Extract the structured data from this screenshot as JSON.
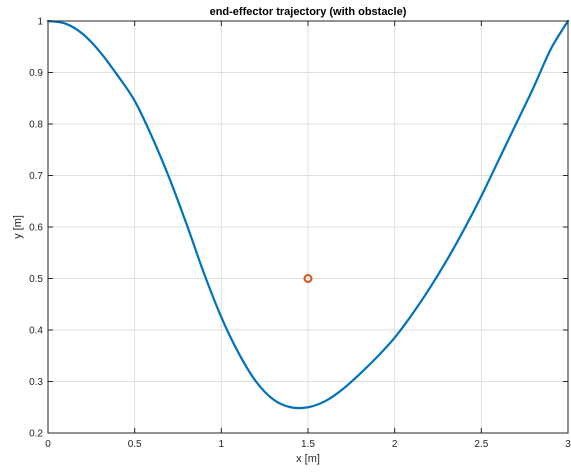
{
  "chart_data": {
    "type": "line",
    "title": "end-effector trajectory (with obstacle)",
    "xlabel": "x [m]",
    "ylabel": "y [m]",
    "xlim": [
      0,
      3
    ],
    "ylim": [
      0.2,
      1
    ],
    "xticks": [
      0,
      0.5,
      1,
      1.5,
      2,
      2.5,
      3
    ],
    "xtick_labels": [
      "0",
      "0.5",
      "1",
      "1.5",
      "2",
      "2.5",
      "3"
    ],
    "yticks": [
      0.2,
      0.3,
      0.4,
      0.5,
      0.6,
      0.7,
      0.8,
      0.9,
      1
    ],
    "ytick_labels": [
      "0.2",
      "0.3",
      "0.4",
      "0.5",
      "0.6",
      "0.7",
      "0.8",
      "0.9",
      "1"
    ],
    "grid": true,
    "series": [
      {
        "color": "#0072BD",
        "x": [
          0,
          0.1,
          0.2,
          0.3,
          0.4,
          0.5,
          0.6,
          0.7,
          0.8,
          0.9,
          1.0,
          1.1,
          1.2,
          1.3,
          1.4,
          1.5,
          1.6,
          1.7,
          1.8,
          1.9,
          2.0,
          2.1,
          2.2,
          2.3,
          2.4,
          2.5,
          2.6,
          2.7,
          2.8,
          2.9,
          3.0
        ],
        "y": [
          1.0,
          0.995,
          0.975,
          0.94,
          0.895,
          0.845,
          0.775,
          0.695,
          0.605,
          0.51,
          0.425,
          0.355,
          0.3,
          0.265,
          0.25,
          0.25,
          0.262,
          0.285,
          0.315,
          0.348,
          0.385,
          0.43,
          0.48,
          0.535,
          0.595,
          0.66,
          0.73,
          0.8,
          0.87,
          0.945,
          1.0
        ]
      }
    ],
    "markers": [
      {
        "label": "obstacle",
        "x": 1.5,
        "y": 0.5,
        "color": "#D95319",
        "shape": "circle"
      }
    ]
  }
}
